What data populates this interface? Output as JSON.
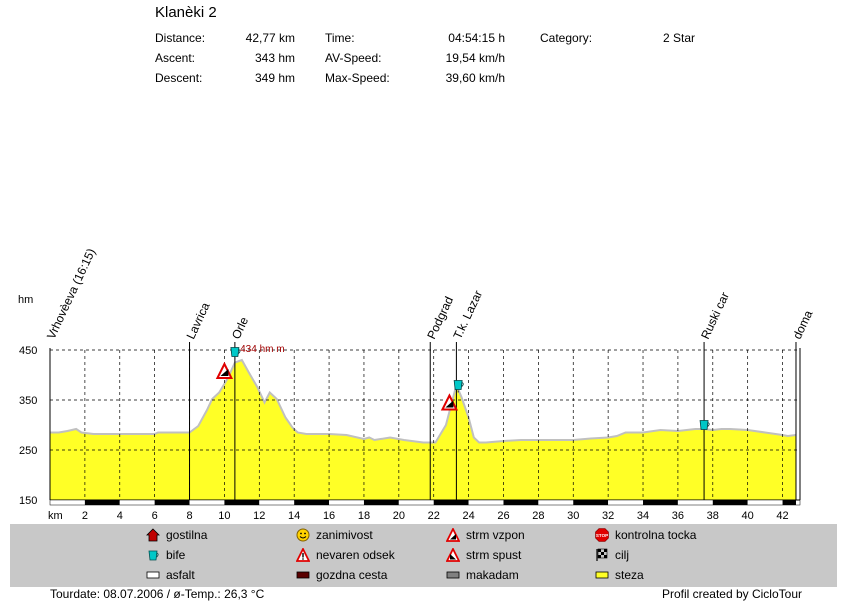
{
  "header": {
    "title": "Klanèki 2",
    "stats": [
      {
        "label": "Distance:",
        "value": "42,77 km"
      },
      {
        "label": "Ascent:",
        "value": "343 hm"
      },
      {
        "label": "Descent:",
        "value": "349 hm"
      },
      {
        "label": "Time:",
        "value": "04:54:15 h"
      },
      {
        "label": "AV-Speed:",
        "value": "19,54 km/h"
      },
      {
        "label": "Max-Speed:",
        "value": "39,60 km/h"
      },
      {
        "label": "Category:",
        "value": "2 Star"
      }
    ]
  },
  "chart_data": {
    "type": "area",
    "ylabel": "hm",
    "xlabel": "km",
    "ylim": [
      150,
      450
    ],
    "xlim": [
      0,
      43
    ],
    "yticks": [
      150,
      250,
      350,
      450
    ],
    "xticks": [
      2,
      4,
      6,
      8,
      10,
      12,
      14,
      16,
      18,
      20,
      22,
      24,
      26,
      28,
      30,
      32,
      34,
      36,
      38,
      40,
      42
    ],
    "fill_color": "#ffff26",
    "line_color": "#c0c0c0",
    "profile": {
      "x": [
        0,
        0.5,
        1.0,
        1.5,
        1.8,
        2.5,
        4,
        6,
        6.2,
        8,
        8.5,
        9.0,
        9.3,
        9.7,
        10.2,
        10.6,
        11.0,
        11.4,
        11.9,
        12.3,
        12.6,
        13.0,
        13.5,
        13.9,
        14.2,
        14.7,
        16,
        17,
        18,
        18.3,
        18.6,
        19.5,
        20.3,
        21.4,
        22.1,
        22.7,
        23.0,
        23.3,
        23.6,
        24.0,
        24.3,
        24.6,
        25,
        26,
        27,
        28,
        30,
        31,
        32,
        32.5,
        33,
        34,
        35,
        36,
        36.5,
        37,
        37.5,
        38,
        38.5,
        39,
        40,
        41,
        42,
        42.3,
        42.77
      ],
      "y": [
        285,
        285,
        288,
        292,
        285,
        282,
        282,
        282,
        285,
        285,
        298,
        330,
        352,
        365,
        394,
        425,
        430,
        405,
        375,
        345,
        365,
        352,
        315,
        295,
        285,
        282,
        282,
        280,
        272,
        275,
        270,
        275,
        270,
        265,
        265,
        300,
        340,
        380,
        355,
        315,
        275,
        265,
        265,
        268,
        270,
        270,
        270,
        273,
        275,
        278,
        285,
        285,
        290,
        288,
        290,
        292,
        292,
        290,
        292,
        292,
        290,
        285,
        280,
        278,
        280
      ]
    },
    "max_label": "434 hm m",
    "max_label_x": 10.9,
    "waypoints": [
      {
        "name": "Vrhovèeva (16:15)",
        "km": 0
      },
      {
        "name": "Lavrica",
        "km": 8.0
      },
      {
        "name": "Orle",
        "km": 10.6
      },
      {
        "name": "Podgrad",
        "km": 21.8
      },
      {
        "name": "T.k. Lazar",
        "km": 23.3
      },
      {
        "name": "Ruski car",
        "km": 37.5
      },
      {
        "name": "doma",
        "km": 42.77
      }
    ],
    "markers": [
      {
        "type": "bife",
        "km": 10.6,
        "hm": 447
      },
      {
        "type": "strm vzpon",
        "km": 10.0,
        "hm": 408
      },
      {
        "type": "bife",
        "km": 23.4,
        "hm": 381
      },
      {
        "type": "strm vzpon",
        "km": 22.9,
        "hm": 345
      },
      {
        "type": "bife",
        "km": 37.5,
        "hm": 301
      }
    ],
    "surface": [
      {
        "from": 0,
        "to": 2,
        "type": "asfalt"
      },
      {
        "from": 2,
        "to": 4,
        "type": "gozdna cesta"
      },
      {
        "from": 4,
        "to": 6,
        "type": "asfalt"
      },
      {
        "from": 6,
        "to": 8,
        "type": "gozdna cesta"
      },
      {
        "from": 8,
        "to": 10,
        "type": "asfalt"
      },
      {
        "from": 10,
        "to": 12,
        "type": "gozdna cesta"
      },
      {
        "from": 12,
        "to": 14,
        "type": "asfalt"
      },
      {
        "from": 14,
        "to": 16,
        "type": "gozdna cesta"
      },
      {
        "from": 16,
        "to": 18,
        "type": "asfalt"
      },
      {
        "from": 18,
        "to": 20,
        "type": "gozdna cesta"
      },
      {
        "from": 20,
        "to": 22,
        "type": "asfalt"
      },
      {
        "from": 22,
        "to": 24,
        "type": "gozdna cesta"
      },
      {
        "from": 24,
        "to": 26,
        "type": "asfalt"
      },
      {
        "from": 26,
        "to": 28,
        "type": "gozdna cesta"
      },
      {
        "from": 28,
        "to": 30,
        "type": "asfalt"
      },
      {
        "from": 30,
        "to": 32,
        "type": "gozdna cesta"
      },
      {
        "from": 32,
        "to": 34,
        "type": "asfalt"
      },
      {
        "from": 34,
        "to": 36,
        "type": "gozdna cesta"
      },
      {
        "from": 36,
        "to": 38,
        "type": "asfalt"
      },
      {
        "from": 38,
        "to": 40,
        "type": "gozdna cesta"
      },
      {
        "from": 40,
        "to": 42,
        "type": "asfalt"
      },
      {
        "from": 42,
        "to": 42.77,
        "type": "gozdna cesta"
      }
    ]
  },
  "legend": [
    {
      "icon": "gostilna-icon",
      "label": "gostilna"
    },
    {
      "icon": "zanimivost-icon",
      "label": "zanimivost"
    },
    {
      "icon": "strm-vzpon-icon",
      "label": "strm vzpon"
    },
    {
      "icon": "kontrolna-tocka-icon",
      "label": "kontrolna tocka"
    },
    {
      "icon": "bife-icon",
      "label": "bife"
    },
    {
      "icon": "nevaren-odsek-icon",
      "label": "nevaren odsek"
    },
    {
      "icon": "strm-spust-icon",
      "label": "strm spust"
    },
    {
      "icon": "cilj-icon",
      "label": "cilj"
    },
    {
      "icon": "asfalt-icon",
      "label": "asfalt"
    },
    {
      "icon": "gozdna-cesta-icon",
      "label": "gozdna cesta"
    },
    {
      "icon": "makadam-icon",
      "label": "makadam"
    },
    {
      "icon": "steza-icon",
      "label": "steza"
    }
  ],
  "footer": {
    "left": "Tourdate: 08.07.2006  /  ø-Temp.: 26,3 °C",
    "right": "Profil created by CicloTour"
  }
}
